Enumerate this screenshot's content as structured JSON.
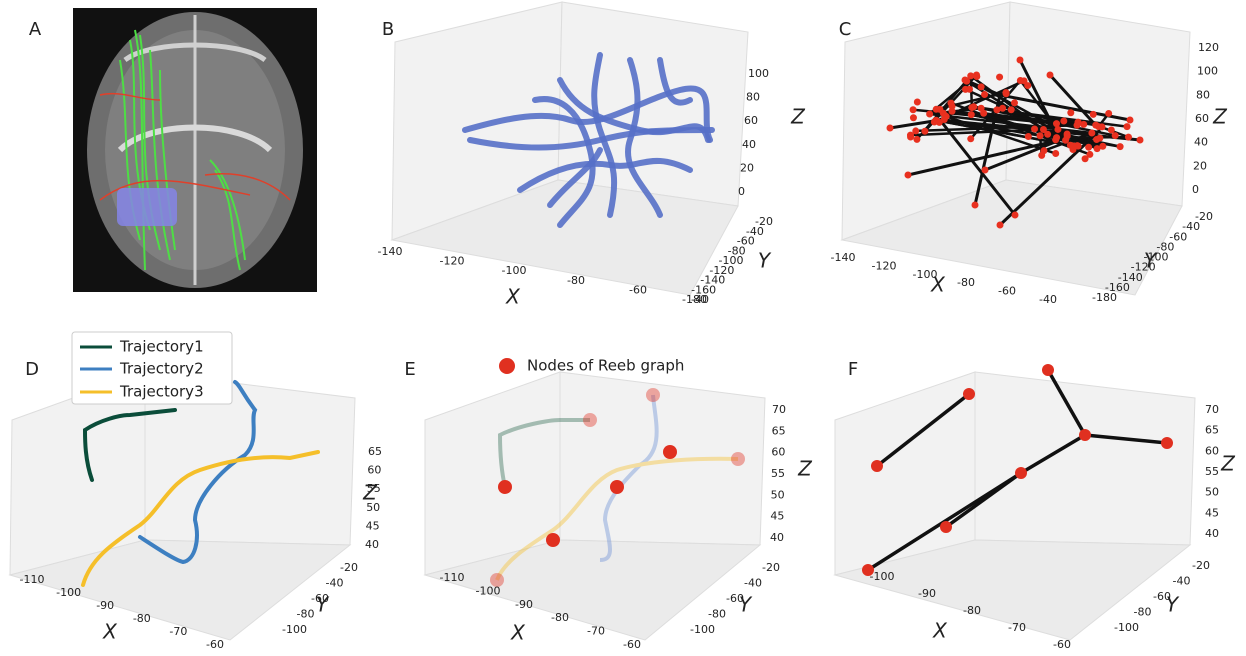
{
  "panels": [
    {
      "label": "A"
    },
    {
      "label": "B",
      "x_label": "X",
      "x_ticks": [
        "-140",
        "-120",
        "-100",
        "-80",
        "-60",
        "-40"
      ],
      "y_label": "Y",
      "y_ticks": [
        "-20",
        "-40",
        "-60",
        "-80",
        "-100",
        "-120",
        "-140",
        "-160",
        "-180"
      ],
      "z_label": "Z",
      "z_ticks": [
        "0",
        "20",
        "40",
        "60",
        "80",
        "100"
      ]
    },
    {
      "label": "C",
      "x_label": "X",
      "x_ticks": [
        "-140",
        "-120",
        "-100",
        "-80",
        "-60",
        "-40"
      ],
      "y_label": "Y",
      "y_ticks": [
        "-20",
        "-40",
        "-60",
        "-80",
        "-100",
        "-120",
        "-140",
        "-160",
        "-180"
      ],
      "z_label": "Z",
      "z_ticks": [
        "0",
        "20",
        "40",
        "60",
        "80",
        "100",
        "120"
      ]
    },
    {
      "label": "D",
      "x_label": "X",
      "x_ticks": [
        "-110",
        "-100",
        "-90",
        "-80",
        "-70",
        "-60"
      ],
      "y_label": "Y",
      "y_ticks": [
        "-20",
        "-40",
        "-60",
        "-80",
        "-100"
      ],
      "z_label": "Z",
      "z_ticks": [
        "40",
        "45",
        "50",
        "55",
        "60",
        "65"
      ],
      "legend": [
        "Trajectory1",
        "Trajectory2",
        "Trajectory3"
      ]
    },
    {
      "label": "E",
      "x_label": "X",
      "x_ticks": [
        "-110",
        "-100",
        "-90",
        "-80",
        "-70",
        "-60"
      ],
      "y_label": "Y",
      "y_ticks": [
        "-20",
        "-40",
        "-60",
        "-80",
        "-100"
      ],
      "z_label": "Z",
      "z_ticks": [
        "40",
        "45",
        "50",
        "55",
        "60",
        "65",
        "70"
      ],
      "legend": [
        "Nodes of Reeb graph"
      ]
    },
    {
      "label": "F",
      "x_label": "X",
      "x_ticks": [
        "-100",
        "-90",
        "-80",
        "-70",
        "-60"
      ],
      "y_label": "Y",
      "y_ticks": [
        "-20",
        "-40",
        "-60",
        "-80",
        "-100"
      ],
      "z_label": "Z",
      "z_ticks": [
        "40",
        "45",
        "50",
        "55",
        "60",
        "65",
        "70"
      ]
    }
  ]
}
